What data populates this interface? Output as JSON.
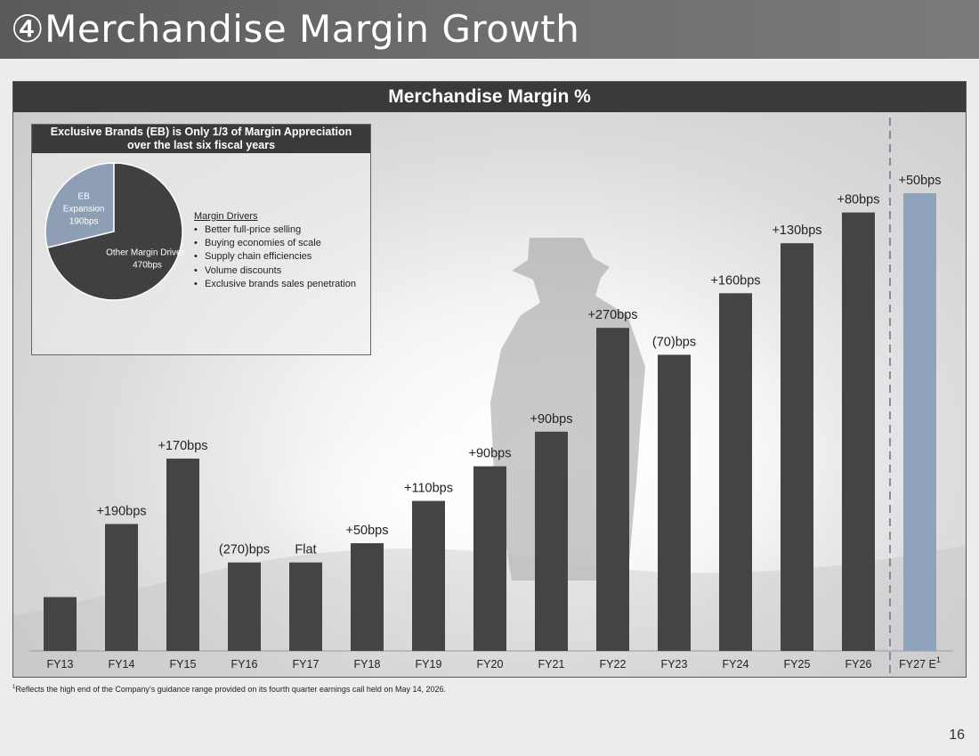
{
  "page": {
    "title_marker": "④",
    "title": "Merchandise Margin Growth",
    "page_number": "16"
  },
  "colors": {
    "bar": "#444444",
    "bar_estimate": "#8fa3bd",
    "pie_eb": "#8e9fb5",
    "pie_other": "#404040",
    "header": "#3a3a3a"
  },
  "chart_data": {
    "type": "bar",
    "title": "Merchandise Margin %",
    "xlabel": "",
    "ylabel": "",
    "categories": [
      "FY13",
      "FY14",
      "FY15",
      "FY16",
      "FY17",
      "FY18",
      "FY19",
      "FY20",
      "FY21",
      "FY22",
      "FY23",
      "FY24",
      "FY25",
      "FY26",
      "FY27 E"
    ],
    "category_superscripts": [
      "",
      "",
      "",
      "",
      "",
      "",
      "",
      "",
      "",
      "",
      "",
      "",
      "",
      "",
      "1"
    ],
    "values": [
      140,
      330,
      500,
      230,
      230,
      280,
      390,
      480,
      570,
      840,
      770,
      930,
      1060,
      1140,
      1190
    ],
    "changes": [
      "",
      "+190bps",
      "+170bps",
      "(270)bps",
      "Flat",
      "+50bps",
      "+110bps",
      "+90bps",
      "+90bps",
      "+270bps",
      "(70)bps",
      "+160bps",
      "+130bps",
      "+80bps",
      "+50bps"
    ],
    "estimate_index": 14,
    "value_units": "bps relative to an unlabeled baseline",
    "axis_labels_shown": false,
    "gridlines": false,
    "divider_before_estimate": "dashed"
  },
  "inset": {
    "title_line1": "Exclusive Brands (EB) is Only 1/3 of Margin Appreciation",
    "title_line2": "over the last six fiscal years",
    "pie": {
      "type": "pie",
      "slices": [
        {
          "label_lines": [
            "EB",
            "Expansion",
            "190bps"
          ],
          "value": 190,
          "color": "#8e9fb5"
        },
        {
          "label_lines": [
            "Other Margin Drivers",
            "470bps"
          ],
          "value": 470,
          "color": "#404040"
        }
      ]
    },
    "drivers_title": "Margin Drivers",
    "drivers": [
      "Better full-price selling",
      "Buying economies of scale",
      "Supply chain efficiencies",
      "Volume discounts",
      "Exclusive brands sales penetration"
    ]
  },
  "footnote": {
    "marker": "1",
    "text": "Reflects the high end of the Company’s guidance range provided on its fourth quarter earnings call held on May 14, 2026."
  }
}
